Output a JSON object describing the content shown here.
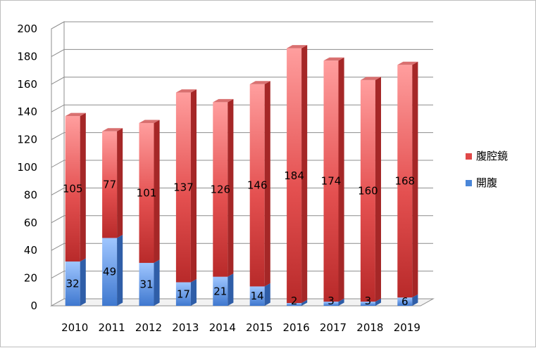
{
  "chart_data": {
    "type": "bar",
    "stacked": true,
    "style": "3d-column",
    "categories": [
      "2010",
      "2011",
      "2012",
      "2013",
      "2014",
      "2015",
      "2016",
      "2017",
      "2018",
      "2019"
    ],
    "series": [
      {
        "name": "開腹",
        "values": [
          32,
          49,
          31,
          17,
          21,
          14,
          2,
          3,
          3,
          6
        ]
      },
      {
        "name": "腹腔鏡",
        "values": [
          105,
          77,
          101,
          137,
          126,
          146,
          184,
          174,
          160,
          168
        ]
      }
    ],
    "y_ticks": [
      "0",
      "20",
      "40",
      "60",
      "80",
      "100",
      "120",
      "140",
      "160",
      "180",
      "200"
    ],
    "ylim": [
      0,
      200
    ],
    "grid": true,
    "legend_position": "right",
    "colors": {
      "開腹": "#4a86d8",
      "腹腔鏡": "#e04848"
    }
  }
}
